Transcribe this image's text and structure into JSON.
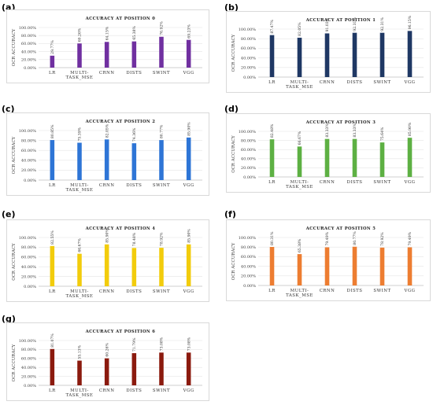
{
  "chart_data": [
    {
      "type": "bar",
      "panel_letter": "(a)",
      "title": "ACCURACY AT POSITION 0",
      "ylabel": "OCR ACCURACY",
      "color": "#7030a0",
      "categories": [
        "LR",
        "MULTI-TASK_MSE",
        "CRNN",
        "DISTS",
        "SWINT",
        "VGG"
      ],
      "values": [
        29.77,
        60.26,
        64.15,
        65.38,
        76.92,
        69.23
      ],
      "value_labels": [
        "29.77%",
        "60.26%",
        "64.15%",
        "65.38%",
        "76.92%",
        "69.23%"
      ],
      "yticks": [
        "0.00%",
        "20.00%",
        "40.00%",
        "60.00%",
        "80.00%",
        "100.00%"
      ],
      "ylim": [
        0,
        100
      ]
    },
    {
      "type": "bar",
      "panel_letter": "(b)",
      "title": "ACCURACY AT POSITION 1",
      "ylabel": "OCR ACCURACY",
      "color": "#1f3864",
      "categories": [
        "LR",
        "MULTI-TASK_MSE",
        "CRNN",
        "DISTS",
        "SWINT",
        "VGG"
      ],
      "values": [
        87.47,
        82.05,
        91.03,
        92.31,
        92.31,
        96.15
      ],
      "value_labels": [
        "87.47%",
        "82.05%",
        "91.03%",
        "92.31%",
        "92.31%",
        "96.15%"
      ],
      "yticks": [
        "0.00%",
        "20.00%",
        "40.00%",
        "60.00%",
        "80.00%",
        "100.00%"
      ],
      "ylim": [
        0,
        100
      ]
    },
    {
      "type": "bar",
      "panel_letter": "(c)",
      "title": "ACCURACY AT POSITION 2",
      "ylabel": "OCR ACCURACY",
      "color": "#2e75d6",
      "categories": [
        "LR",
        "MULTI-TASK_MSE",
        "CRNN",
        "DISTS",
        "SWINT",
        "VGG"
      ],
      "values": [
        80.85,
        75.39,
        82.05,
        74.36,
        80.77,
        85.9
      ],
      "value_labels": [
        "80.85%",
        "75.39%",
        "82.05%",
        "74.36%",
        "80.77%",
        "85.90%"
      ],
      "yticks": [
        "0.00%",
        "20.00%",
        "40.00%",
        "60.00%",
        "80.00%",
        "100.00%"
      ],
      "ylim": [
        0,
        100
      ]
    },
    {
      "type": "bar",
      "panel_letter": "(d)",
      "title": "ACCURACY AT POSITION 3",
      "ylabel": "OCR ACCURACY",
      "color": "#5db043",
      "categories": [
        "LR",
        "MULTI-TASK_MSE",
        "CRNN",
        "DISTS",
        "SWINT",
        "VGG"
      ],
      "values": [
        82.48,
        66.67,
        83.33,
        83.33,
        75.64,
        85.9
      ],
      "value_labels": [
        "82.48%",
        "66.67%",
        "83.33%",
        "83.33%",
        "75.64%",
        "85.90%"
      ],
      "yticks": [
        "0.00%",
        "20.00%",
        "40.00%",
        "60.00%",
        "80.00%",
        "100.00%"
      ],
      "ylim": [
        0,
        100
      ]
    },
    {
      "type": "bar",
      "panel_letter": "(e)",
      "title": "ACCURACY AT POSITION 4",
      "ylabel": "OCR ACCURACY",
      "color": "#f2cc0c",
      "categories": [
        "LR",
        "MULTI-TASK_MSE",
        "CRNN",
        "DISTS",
        "SWINT",
        "VGG"
      ],
      "values": [
        82.55,
        66.67,
        85.9,
        78.48,
        78.92,
        85.9
      ],
      "value_labels": [
        "82.55%",
        "66.67%",
        "85.90%",
        "78.48%",
        "78.92%",
        "85.90%"
      ],
      "yticks": [
        "0.00%",
        "20.00%",
        "40.00%",
        "60.00%",
        "80.00%",
        "100.00%"
      ],
      "ylim": [
        0,
        100
      ]
    },
    {
      "type": "bar",
      "panel_letter": "(f)",
      "title": "ACCURACY AT POSITION 5",
      "ylabel": "OCR ACCURACY",
      "color": "#ed7d31",
      "categories": [
        "LR",
        "MULTI-TASK_MSE",
        "CRNN",
        "DISTS",
        "SWINT",
        "VGG"
      ],
      "values": [
        80.31,
        65.38,
        79.49,
        80.77,
        78.92,
        79.49
      ],
      "value_labels": [
        "80.31%",
        "65.38%",
        "79.49%",
        "80.77%",
        "78.92%",
        "79.49%"
      ],
      "yticks": [
        "0.00%",
        "20.00%",
        "40.00%",
        "60.00%",
        "80.00%",
        "100.00%"
      ],
      "ylim": [
        0,
        100
      ]
    },
    {
      "type": "bar",
      "panel_letter": "(g)",
      "title": "ACCURACY AT POSITION 6",
      "ylabel": "OCR ACCURACY",
      "color": "#8b1a0e",
      "categories": [
        "LR",
        "MULTI-TASK_MSE",
        "CRNN",
        "DISTS",
        "SWINT",
        "VGG"
      ],
      "values": [
        81.07,
        55.13,
        60.26,
        71.79,
        73.08,
        73.08
      ],
      "value_labels": [
        "81.07%",
        "55.13%",
        "60.26%",
        "71.79%",
        "73.08%",
        "73.08%"
      ],
      "yticks": [
        "0.00%",
        "20.00%",
        "40.00%",
        "60.00%",
        "80.00%",
        "100.00%"
      ],
      "ylim": [
        0,
        100
      ]
    }
  ]
}
